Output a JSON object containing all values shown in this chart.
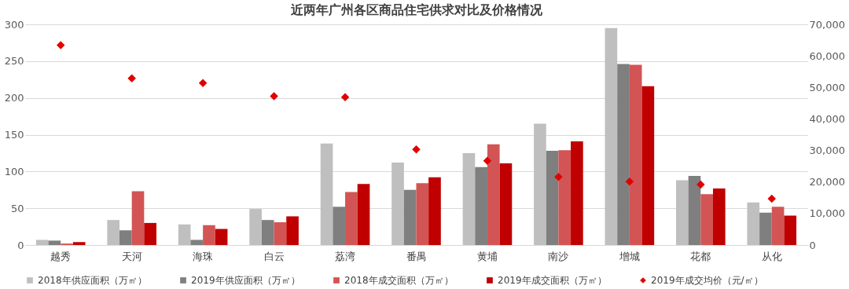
{
  "chart_data": {
    "type": "bar",
    "title": "近两年广州各区商品住宅供求对比及价格情况",
    "categories": [
      "越秀",
      "天河",
      "海珠",
      "白云",
      "荔湾",
      "番禺",
      "黄埔",
      "南沙",
      "增城",
      "花都",
      "从化"
    ],
    "series": [
      {
        "name": "2018年供应面积（万㎡）",
        "color": "#bfbfbf",
        "values": [
          7,
          34,
          28,
          49,
          138,
          112,
          125,
          165,
          295,
          88,
          58
        ]
      },
      {
        "name": "2019年供应面积（万㎡）",
        "color": "#7f7f7f",
        "values": [
          6,
          20,
          7,
          34,
          52,
          75,
          106,
          128,
          246,
          94,
          44
        ]
      },
      {
        "name": "2018年成交面积（万㎡）",
        "color": "#d35454",
        "values": [
          2,
          73,
          27,
          31,
          72,
          84,
          137,
          129,
          245,
          69,
          52
        ]
      },
      {
        "name": "2019年成交面积（万㎡）",
        "color": "#c00000",
        "values": [
          4,
          30,
          22,
          39,
          83,
          92,
          111,
          141,
          216,
          77,
          40
        ]
      },
      {
        "name": "2019年成交均价（元/㎡）",
        "color": "#e00000",
        "type": "scatter",
        "axis": "y2",
        "marker": "diamond",
        "x": [
          "越秀",
          "天河",
          "海珠",
          "白云",
          "荔湾",
          "番禺",
          "黄埔",
          "南沙",
          "增城",
          "花都",
          "从化"
        ],
        "values": [
          63400,
          52900,
          51400,
          47200,
          46900,
          30300,
          26700,
          21600,
          20100,
          19200,
          14700
        ]
      }
    ],
    "ylim": [
      0,
      300
    ],
    "yticks": [
      0,
      50,
      100,
      150,
      200,
      250,
      300
    ],
    "y2lim": [
      0,
      70000
    ],
    "y2ticks": [
      {
        "value": 0,
        "label": "0"
      },
      {
        "value": 10000,
        "label": "10,000"
      },
      {
        "value": 20000,
        "label": "20,000"
      },
      {
        "value": 30000,
        "label": "30,000"
      },
      {
        "value": 40000,
        "label": "40,000"
      },
      {
        "value": 50000,
        "label": "50,000"
      },
      {
        "value": 60000,
        "label": "60,000"
      },
      {
        "value": 70000,
        "label": "70,000"
      }
    ],
    "grid": "y",
    "legend": "bottom"
  }
}
